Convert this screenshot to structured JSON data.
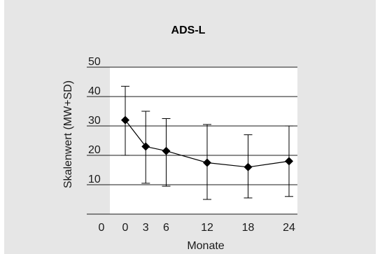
{
  "chart_data": {
    "type": "line",
    "title": "ADS-L",
    "xlabel": "Monate",
    "ylabel": "Skalenwert (MW+SD)",
    "x_categories": [
      "0",
      "0",
      "3",
      "6",
      "12",
      "18",
      "24"
    ],
    "x": [
      0,
      3,
      6,
      12,
      18,
      24
    ],
    "ylim": [
      0,
      50
    ],
    "yticks": [
      "10",
      "20",
      "30",
      "40",
      "50"
    ],
    "series": [
      {
        "values": [
          32,
          23,
          21.5,
          17.5,
          16,
          18
        ],
        "sd_upper": [
          43.5,
          35,
          32.5,
          30.5,
          27,
          30
        ],
        "sd_lower": [
          20,
          10.5,
          9.5,
          5,
          5.5,
          6
        ],
        "marker": "diamond",
        "color": "#000000"
      }
    ],
    "grid": true
  },
  "colors": {
    "figure_background": "#e6e6e6",
    "plot_background": "#ffffff",
    "baseline_band": "#e6e6e6",
    "gridline": "#1a1a1a",
    "series": "#000000"
  }
}
